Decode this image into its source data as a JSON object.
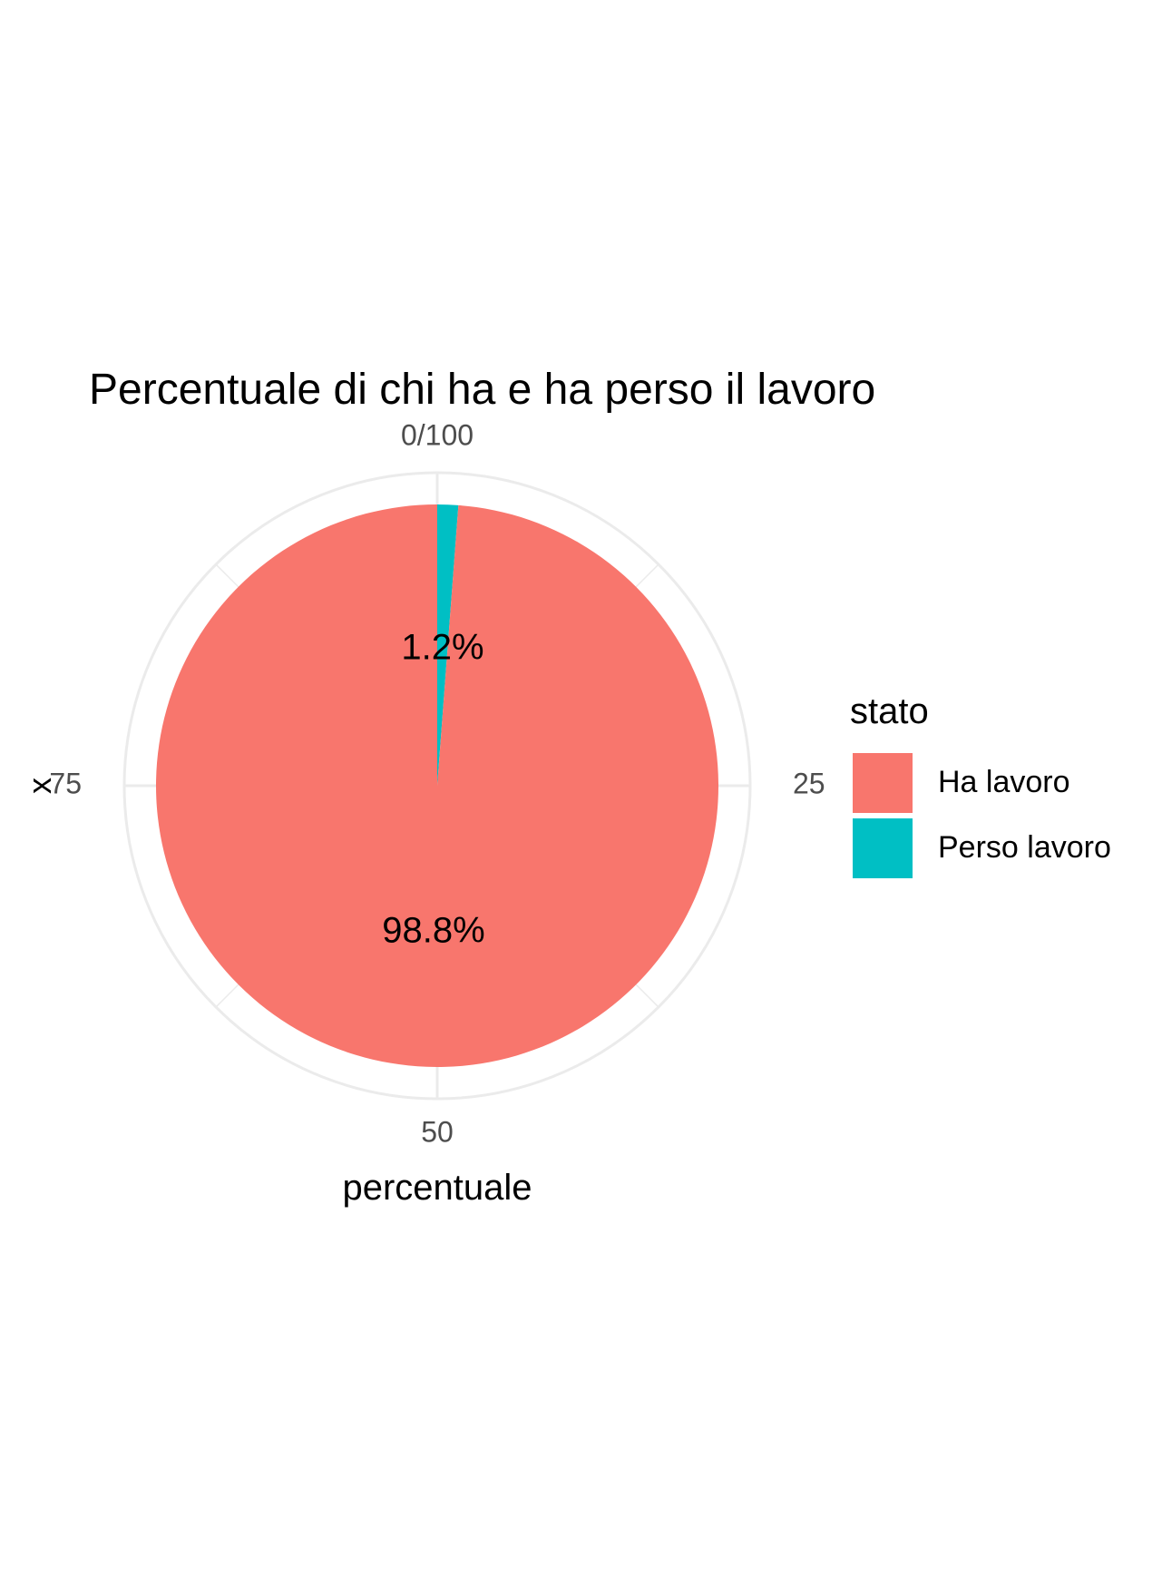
{
  "chart_data": {
    "type": "pie",
    "title": "Percentuale di chi ha e ha perso il lavoro",
    "xlabel": "percentuale",
    "ylabel": "x",
    "legend": {
      "title": "stato",
      "placement": "right"
    },
    "theta_axis": {
      "ticks": [
        {
          "value": 0,
          "label": "0/100"
        },
        {
          "value": 25,
          "label": "25"
        },
        {
          "value": 50,
          "label": "50"
        },
        {
          "value": 75,
          "label": "75"
        }
      ],
      "range": [
        0,
        100
      ]
    },
    "slices": [
      {
        "name": "Perso lavoro",
        "value": 1.2,
        "label": "1.2%",
        "color": "#00BFC4"
      },
      {
        "name": "Ha lavoro",
        "value": 98.8,
        "label": "98.8%",
        "color": "#F8766D"
      }
    ],
    "grid": true,
    "grid_color": "#EBEBEB"
  }
}
